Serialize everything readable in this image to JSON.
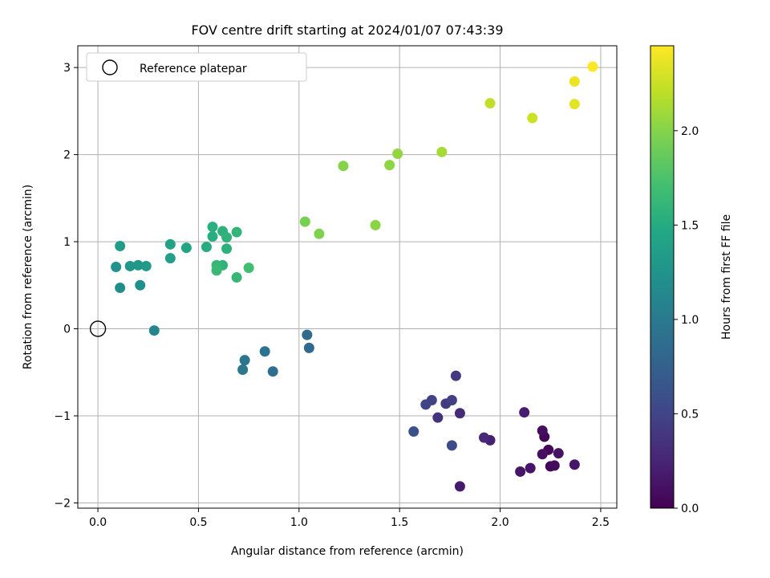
{
  "chart_data": {
    "type": "scatter",
    "title": "FOV centre drift starting at 2024/01/07 07:43:39",
    "xlabel": "Angular distance from reference (arcmin)",
    "ylabel": "Rotation from reference (arcmin)",
    "xlim": [
      -0.1,
      2.58
    ],
    "ylim": [
      -2.06,
      3.25
    ],
    "xticks": [
      "0.0",
      "0.5",
      "1.0",
      "1.5",
      "2.0",
      "2.5"
    ],
    "yticks": [
      "−2",
      "−1",
      "0",
      "1",
      "2",
      "3"
    ],
    "grid": true,
    "legend": {
      "position": "upper-left",
      "entries": [
        "Reference platepar"
      ]
    },
    "reference_point": {
      "x": 0.0,
      "y": 0.0
    },
    "colorbar": {
      "label": "Hours from first FF file",
      "colormap": "viridis",
      "range": [
        0.0,
        2.45
      ],
      "ticks": [
        "0.0",
        "0.5",
        "1.0",
        "1.5",
        "2.0"
      ]
    },
    "points": [
      {
        "x": 2.22,
        "y": -1.24,
        "c": 0.02
      },
      {
        "x": 2.25,
        "y": -1.58,
        "c": 0.03
      },
      {
        "x": 2.24,
        "y": -1.39,
        "c": 0.05
      },
      {
        "x": 2.27,
        "y": -1.57,
        "c": 0.07
      },
      {
        "x": 2.21,
        "y": -1.17,
        "c": 0.09
      },
      {
        "x": 2.21,
        "y": -1.44,
        "c": 0.1
      },
      {
        "x": 2.29,
        "y": -1.43,
        "c": 0.12
      },
      {
        "x": 2.15,
        "y": -1.6,
        "c": 0.14
      },
      {
        "x": 2.1,
        "y": -1.64,
        "c": 0.15
      },
      {
        "x": 2.37,
        "y": -1.56,
        "c": 0.16
      },
      {
        "x": 1.8,
        "y": -1.81,
        "c": 0.18
      },
      {
        "x": 2.12,
        "y": -0.96,
        "c": 0.2
      },
      {
        "x": 1.95,
        "y": -1.28,
        "c": 0.22
      },
      {
        "x": 1.92,
        "y": -1.25,
        "c": 0.28
      },
      {
        "x": 1.8,
        "y": -0.97,
        "c": 0.3
      },
      {
        "x": 1.69,
        "y": -1.02,
        "c": 0.35
      },
      {
        "x": 1.78,
        "y": -0.54,
        "c": 0.4
      },
      {
        "x": 1.73,
        "y": -0.86,
        "c": 0.42
      },
      {
        "x": 1.76,
        "y": -0.82,
        "c": 0.45
      },
      {
        "x": 1.66,
        "y": -0.82,
        "c": 0.48
      },
      {
        "x": 1.63,
        "y": -0.87,
        "c": 0.5
      },
      {
        "x": 1.76,
        "y": -1.34,
        "c": 0.55
      },
      {
        "x": 1.57,
        "y": -1.18,
        "c": 0.6
      },
      {
        "x": 1.05,
        "y": -0.22,
        "c": 0.82
      },
      {
        "x": 1.04,
        "y": -0.07,
        "c": 0.84
      },
      {
        "x": 0.87,
        "y": -0.49,
        "c": 0.88
      },
      {
        "x": 0.83,
        "y": -0.26,
        "c": 0.92
      },
      {
        "x": 0.73,
        "y": -0.36,
        "c": 0.95
      },
      {
        "x": 0.72,
        "y": -0.47,
        "c": 0.97
      },
      {
        "x": 0.28,
        "y": -0.02,
        "c": 1.1
      },
      {
        "x": 0.11,
        "y": 0.47,
        "c": 1.2
      },
      {
        "x": 0.21,
        "y": 0.5,
        "c": 1.22
      },
      {
        "x": 0.09,
        "y": 0.71,
        "c": 1.25
      },
      {
        "x": 0.16,
        "y": 0.72,
        "c": 1.28
      },
      {
        "x": 0.2,
        "y": 0.73,
        "c": 1.3
      },
      {
        "x": 0.24,
        "y": 0.72,
        "c": 1.32
      },
      {
        "x": 0.11,
        "y": 0.95,
        "c": 1.34
      },
      {
        "x": 0.36,
        "y": 0.81,
        "c": 1.38
      },
      {
        "x": 0.36,
        "y": 0.97,
        "c": 1.4
      },
      {
        "x": 0.44,
        "y": 0.93,
        "c": 1.44
      },
      {
        "x": 0.54,
        "y": 0.94,
        "c": 1.5
      },
      {
        "x": 0.57,
        "y": 1.06,
        "c": 1.52
      },
      {
        "x": 0.57,
        "y": 1.17,
        "c": 1.54
      },
      {
        "x": 0.62,
        "y": 1.12,
        "c": 1.56
      },
      {
        "x": 0.64,
        "y": 1.05,
        "c": 1.58
      },
      {
        "x": 0.69,
        "y": 1.11,
        "c": 1.6
      },
      {
        "x": 0.64,
        "y": 0.92,
        "c": 1.55
      },
      {
        "x": 0.62,
        "y": 0.73,
        "c": 1.58
      },
      {
        "x": 0.59,
        "y": 0.73,
        "c": 1.62
      },
      {
        "x": 0.59,
        "y": 0.67,
        "c": 1.64
      },
      {
        "x": 0.69,
        "y": 0.59,
        "c": 1.62
      },
      {
        "x": 0.75,
        "y": 0.7,
        "c": 1.7
      },
      {
        "x": 1.03,
        "y": 1.23,
        "c": 1.95
      },
      {
        "x": 1.1,
        "y": 1.09,
        "c": 1.97
      },
      {
        "x": 1.22,
        "y": 1.87,
        "c": 2.0
      },
      {
        "x": 1.38,
        "y": 1.19,
        "c": 2.02
      },
      {
        "x": 1.45,
        "y": 1.88,
        "c": 2.03
      },
      {
        "x": 1.49,
        "y": 2.01,
        "c": 2.05
      },
      {
        "x": 1.71,
        "y": 2.03,
        "c": 2.12
      },
      {
        "x": 1.95,
        "y": 2.59,
        "c": 2.22
      },
      {
        "x": 2.16,
        "y": 2.42,
        "c": 2.26
      },
      {
        "x": 2.37,
        "y": 2.58,
        "c": 2.35
      },
      {
        "x": 2.37,
        "y": 2.84,
        "c": 2.38
      },
      {
        "x": 2.46,
        "y": 3.01,
        "c": 2.44
      }
    ]
  }
}
